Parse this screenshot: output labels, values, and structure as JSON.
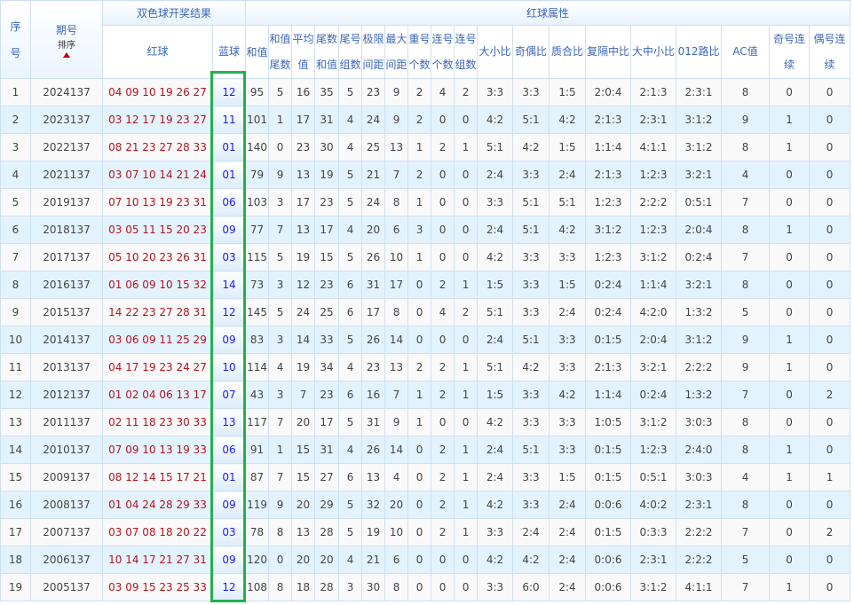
{
  "header": {
    "seq": "序号",
    "issue": "期号",
    "sort_label": "排序",
    "draw_result": "双色球开奖结果",
    "red_attr": "红球属性",
    "red": "红球",
    "blue": "蓝球",
    "cols": [
      "和值",
      "和值尾数",
      "平均值",
      "尾数和值",
      "尾号组数",
      "极限间距",
      "最大间距",
      "重号个数",
      "连号个数",
      "连号组数",
      "大小比",
      "奇偶比",
      "质合比",
      "复隔中比",
      "大中小比",
      "012路比",
      "AC值",
      "奇号连续",
      "偶号连续"
    ]
  },
  "colors": {
    "red_ball": "#b4141c",
    "blue_ball": "#1a1aff",
    "highlight_box": "#22b14c",
    "header_text": "#3b66b8",
    "stripe": "#e3f3fe"
  },
  "rows": [
    [
      "1",
      "2024137",
      "04 09 10 19 26 27",
      "12",
      "95",
      "5",
      "16",
      "35",
      "5",
      "23",
      "9",
      "2",
      "4",
      "2",
      "3:3",
      "3:3",
      "1:5",
      "2:0:4",
      "2:1:3",
      "2:3:1",
      "8",
      "0",
      "0"
    ],
    [
      "2",
      "2023137",
      "03 12 17 19 23 27",
      "11",
      "101",
      "1",
      "17",
      "31",
      "4",
      "24",
      "9",
      "2",
      "0",
      "0",
      "4:2",
      "5:1",
      "4:2",
      "2:1:3",
      "2:3:1",
      "3:1:2",
      "9",
      "1",
      "0"
    ],
    [
      "3",
      "2022137",
      "08 21 23 27 28 33",
      "01",
      "140",
      "0",
      "23",
      "30",
      "4",
      "25",
      "13",
      "1",
      "2",
      "1",
      "5:1",
      "4:2",
      "1:5",
      "1:1:4",
      "4:1:1",
      "3:1:2",
      "8",
      "1",
      "0"
    ],
    [
      "4",
      "2021137",
      "03 07 10 14 21 24",
      "01",
      "79",
      "9",
      "13",
      "19",
      "5",
      "21",
      "7",
      "2",
      "0",
      "0",
      "2:4",
      "3:3",
      "2:4",
      "2:1:3",
      "1:2:3",
      "3:2:1",
      "4",
      "0",
      "0"
    ],
    [
      "5",
      "2019137",
      "07 10 13 19 23 31",
      "06",
      "103",
      "3",
      "17",
      "23",
      "5",
      "24",
      "8",
      "1",
      "0",
      "0",
      "3:3",
      "5:1",
      "5:1",
      "1:2:3",
      "2:2:2",
      "0:5:1",
      "7",
      "0",
      "0"
    ],
    [
      "6",
      "2018137",
      "03 05 11 15 20 23",
      "09",
      "77",
      "7",
      "13",
      "17",
      "4",
      "20",
      "6",
      "3",
      "0",
      "0",
      "2:4",
      "5:1",
      "4:2",
      "3:1:2",
      "1:2:3",
      "2:0:4",
      "8",
      "1",
      "0"
    ],
    [
      "7",
      "2017137",
      "05 10 20 23 26 31",
      "03",
      "115",
      "5",
      "19",
      "15",
      "5",
      "26",
      "10",
      "1",
      "0",
      "0",
      "4:2",
      "3:3",
      "3:3",
      "1:2:3",
      "3:1:2",
      "0:2:4",
      "7",
      "0",
      "0"
    ],
    [
      "8",
      "2016137",
      "01 06 09 10 15 32",
      "14",
      "73",
      "3",
      "12",
      "23",
      "6",
      "31",
      "17",
      "0",
      "2",
      "1",
      "1:5",
      "3:3",
      "1:5",
      "0:2:4",
      "1:1:4",
      "3:2:1",
      "8",
      "0",
      "0"
    ],
    [
      "9",
      "2015137",
      "14 22 23 27 28 31",
      "12",
      "145",
      "5",
      "24",
      "25",
      "6",
      "17",
      "8",
      "0",
      "4",
      "2",
      "5:1",
      "3:3",
      "2:4",
      "0:2:4",
      "4:2:0",
      "1:3:2",
      "5",
      "0",
      "0"
    ],
    [
      "10",
      "2014137",
      "03 06 09 11 25 29",
      "09",
      "83",
      "3",
      "14",
      "33",
      "5",
      "26",
      "14",
      "0",
      "0",
      "0",
      "2:4",
      "5:1",
      "3:3",
      "0:1:5",
      "2:0:4",
      "3:1:2",
      "9",
      "1",
      "0"
    ],
    [
      "11",
      "2013137",
      "04 17 19 23 24 27",
      "10",
      "114",
      "4",
      "19",
      "34",
      "4",
      "23",
      "13",
      "2",
      "2",
      "1",
      "5:1",
      "4:2",
      "3:3",
      "2:1:3",
      "3:2:1",
      "2:2:2",
      "9",
      "1",
      "0"
    ],
    [
      "12",
      "2012137",
      "01 02 04 06 13 17",
      "07",
      "43",
      "3",
      "7",
      "23",
      "6",
      "16",
      "7",
      "1",
      "2",
      "1",
      "1:5",
      "3:3",
      "4:2",
      "1:1:4",
      "0:2:4",
      "1:3:2",
      "7",
      "0",
      "2"
    ],
    [
      "13",
      "2011137",
      "02 11 18 23 30 33",
      "13",
      "117",
      "7",
      "20",
      "17",
      "5",
      "31",
      "9",
      "1",
      "0",
      "0",
      "4:2",
      "3:3",
      "3:3",
      "1:0:5",
      "3:1:2",
      "3:0:3",
      "8",
      "0",
      "0"
    ],
    [
      "14",
      "2010137",
      "07 09 10 13 19 33",
      "06",
      "91",
      "1",
      "15",
      "31",
      "4",
      "26",
      "14",
      "0",
      "2",
      "1",
      "2:4",
      "5:1",
      "3:3",
      "0:1:5",
      "1:2:3",
      "2:4:0",
      "8",
      "1",
      "0"
    ],
    [
      "15",
      "2009137",
      "08 12 14 15 17 21",
      "01",
      "87",
      "7",
      "15",
      "27",
      "6",
      "13",
      "4",
      "0",
      "2",
      "1",
      "2:4",
      "3:3",
      "1:5",
      "0:1:5",
      "0:5:1",
      "3:0:3",
      "4",
      "1",
      "1"
    ],
    [
      "16",
      "2008137",
      "01 04 24 28 29 33",
      "09",
      "119",
      "9",
      "20",
      "29",
      "5",
      "32",
      "20",
      "0",
      "2",
      "1",
      "4:2",
      "3:3",
      "2:4",
      "0:0:6",
      "4:0:2",
      "2:3:1",
      "8",
      "0",
      "0"
    ],
    [
      "17",
      "2007137",
      "03 07 08 18 20 22",
      "03",
      "78",
      "8",
      "13",
      "28",
      "5",
      "19",
      "10",
      "0",
      "2",
      "1",
      "3:3",
      "2:4",
      "2:4",
      "0:1:5",
      "0:3:3",
      "2:2:2",
      "7",
      "0",
      "2"
    ],
    [
      "18",
      "2006137",
      "10 14 17 21 27 31",
      "09",
      "120",
      "0",
      "20",
      "20",
      "4",
      "21",
      "6",
      "0",
      "0",
      "0",
      "4:2",
      "4:2",
      "2:4",
      "0:0:6",
      "2:3:1",
      "2:2:2",
      "5",
      "0",
      "0"
    ],
    [
      "19",
      "2005137",
      "03 09 15 23 25 33",
      "12",
      "108",
      "8",
      "18",
      "28",
      "3",
      "30",
      "8",
      "0",
      "0",
      "0",
      "3:3",
      "6:0",
      "2:4",
      "0:0:6",
      "3:1:2",
      "4:1:1",
      "7",
      "1",
      "0"
    ]
  ]
}
